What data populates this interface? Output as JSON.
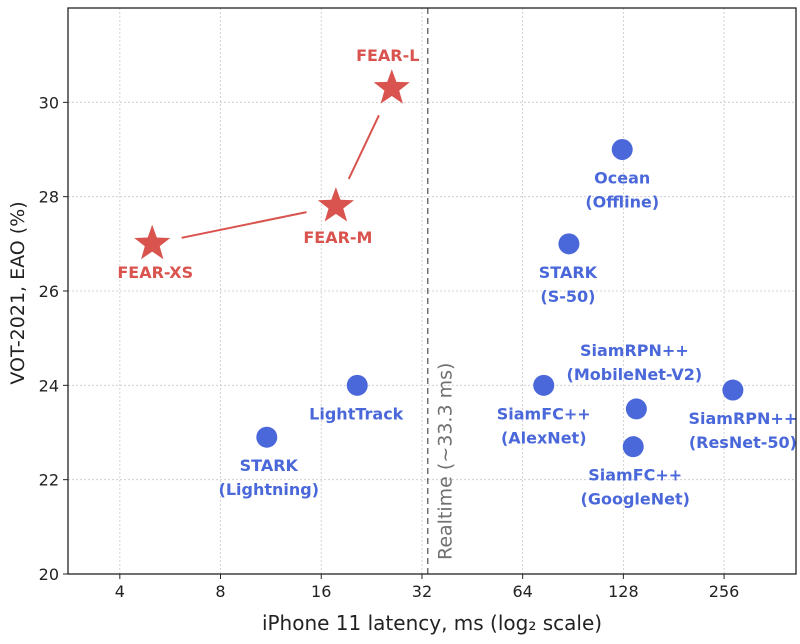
{
  "chart_data": {
    "type": "scatter",
    "xlabel": "iPhone 11 latency, ms (log₂ scale)",
    "ylabel": "VOT-2021, EAO (%)",
    "xscale": "log2",
    "xlim": [
      2.8,
      420
    ],
    "ylim": [
      20,
      32
    ],
    "xticks": [
      4,
      8,
      16,
      32,
      64,
      128,
      256
    ],
    "yticks": [
      20,
      22,
      24,
      26,
      28,
      30
    ],
    "grid": true,
    "colors": {
      "fear": "#d9534f",
      "other": "#4a68d9",
      "line": "#d9534f",
      "realtime": "#707070"
    },
    "realtime": {
      "x": 33.3,
      "label": "Realtime (~33.3 ms)"
    },
    "series": [
      {
        "marker": "star",
        "connected": true,
        "points": [
          {
            "x": 5.0,
            "y": 27.0,
            "label": "FEAR-XS"
          },
          {
            "x": 17.7,
            "y": 27.8,
            "label": "FEAR-M"
          },
          {
            "x": 26.0,
            "y": 30.3,
            "label": "FEAR-L"
          }
        ]
      },
      {
        "marker": "circle",
        "connected": false,
        "points": [
          {
            "x": 11.0,
            "y": 22.9,
            "label": "STARK (Lightning)"
          },
          {
            "x": 20.5,
            "y": 24.0,
            "label": "LightTrack"
          },
          {
            "x": 74,
            "y": 24.0,
            "label": "SiamFC++ (AlexNet)"
          },
          {
            "x": 88,
            "y": 27.0,
            "label": "STARK (S-50)"
          },
          {
            "x": 127,
            "y": 29.0,
            "label": "Ocean (Offline)"
          },
          {
            "x": 140,
            "y": 23.5,
            "label": "SiamRPN++ (MobileNet-V2)"
          },
          {
            "x": 137,
            "y": 22.7,
            "label": "SiamFC++ (GoogleNet)"
          },
          {
            "x": 272,
            "y": 23.9,
            "label": "SiamRPN++ (ResNet-50)"
          }
        ]
      }
    ]
  }
}
